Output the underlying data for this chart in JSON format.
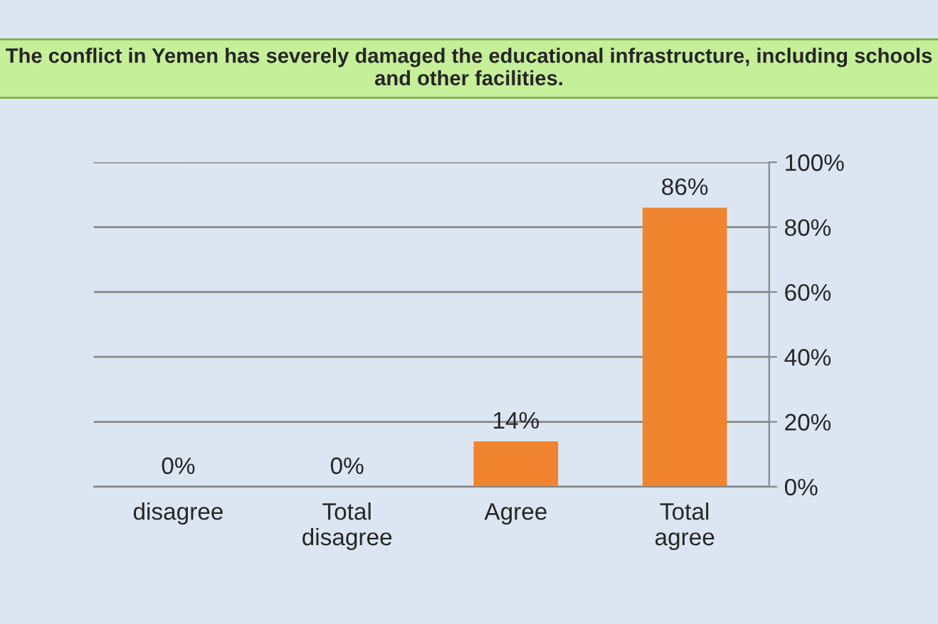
{
  "chart_data": {
    "type": "bar",
    "title": "The conflict in Yemen has severely damaged the educational infrastructure, including schools and other facilities.",
    "categories": [
      "disagree",
      "Total\ndisagree",
      "Agree",
      "Total\nagree"
    ],
    "values": [
      0,
      0,
      14,
      86
    ],
    "color": "#f0842f",
    "value_labels": [
      "0%",
      "0%",
      "14%",
      "86%"
    ],
    "ylim": [
      0,
      100
    ],
    "yticks": [
      {
        "value": 0,
        "label": "0%"
      },
      {
        "value": 20,
        "label": "20%"
      },
      {
        "value": 40,
        "label": "40%"
      },
      {
        "value": 60,
        "label": "60%"
      },
      {
        "value": 80,
        "label": "80%"
      },
      {
        "value": 100,
        "label": "100%"
      }
    ],
    "grid": "y"
  }
}
